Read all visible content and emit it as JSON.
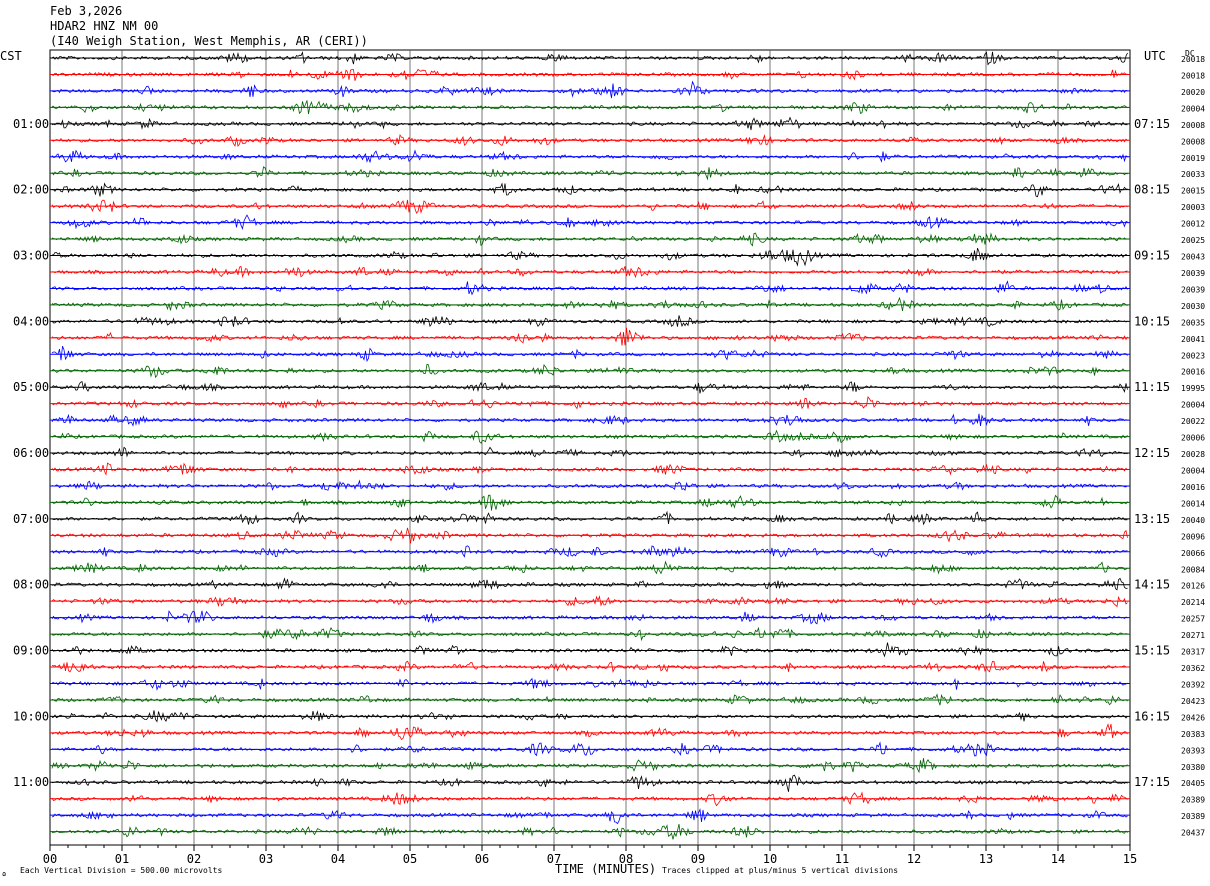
{
  "header": {
    "date": "Feb 3,2026",
    "station": "HDAR2 HNZ NM 00",
    "location": "(I40 Weigh Station, West Memphis, AR (CERI))"
  },
  "labels": {
    "left_tz": "CST",
    "right_tz": "UTC",
    "dc": "DC",
    "logo": "ɷ"
  },
  "footer": {
    "vertical_division": "Each Vertical Division =  500.00 microvolts",
    "xlabel": "TIME (MINUTES)",
    "clip_note": "Traces clipped at plus/minus 5 vertical divisions"
  },
  "chart_data": {
    "type": "line",
    "title": "Feb 3,2026 HDAR2 HNZ NM 00",
    "xlabel": "TIME (MINUTES)",
    "xlim": [
      0,
      15
    ],
    "x_ticks": [
      "00",
      "01",
      "02",
      "03",
      "04",
      "05",
      "06",
      "07",
      "08",
      "09",
      "10",
      "11",
      "12",
      "13",
      "14",
      "15"
    ],
    "left_time_labels": [
      "01:00",
      "02:00",
      "03:00",
      "04:00",
      "05:00",
      "06:00",
      "07:00",
      "08:00",
      "09:00",
      "10:00",
      "11:00"
    ],
    "right_time_labels": [
      "07:15",
      "08:15",
      "09:15",
      "10:15",
      "11:15",
      "12:15",
      "13:15",
      "14:15",
      "15:15",
      "16:15",
      "17:15"
    ],
    "trace_colors": [
      "#000000",
      "#ff0000",
      "#0000ff",
      "#006400"
    ],
    "dc_offsets": [
      "20018",
      "20018",
      "20020",
      "20004",
      "20008",
      "20008",
      "20019",
      "20033",
      "20015",
      "20003",
      "20012",
      "20025",
      "20043",
      "20039",
      "20039",
      "20030",
      "20035",
      "20041",
      "20023",
      "20016",
      "19995",
      "20004",
      "20022",
      "20006",
      "20028",
      "20004",
      "20016",
      "20014",
      "20040",
      "20096",
      "20066",
      "20084",
      "20126",
      "20214",
      "20257",
      "20271",
      "20317",
      "20362",
      "20392",
      "20423",
      "20426",
      "20383",
      "20393",
      "20380",
      "20405",
      "20389",
      "20389",
      "20437"
    ]
  }
}
